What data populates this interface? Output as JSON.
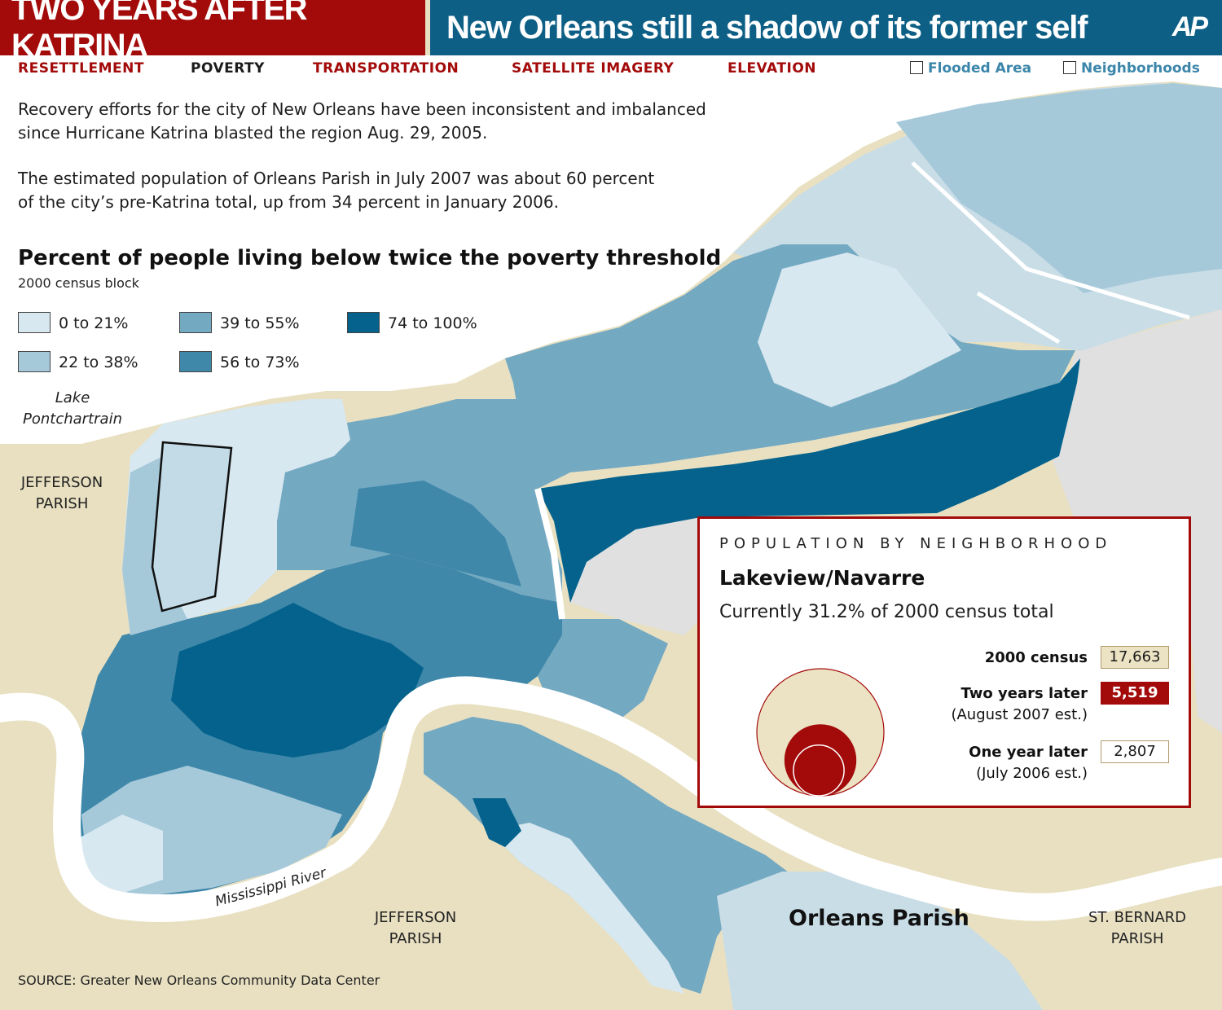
{
  "header": {
    "title_left": "TWO YEARS AFTER KATRINA",
    "title_right": "New Orleans still a shadow of its former self",
    "logo": "AP"
  },
  "nav": {
    "items": [
      {
        "label": "RESETTLEMENT",
        "active": false
      },
      {
        "label": "POVERTY",
        "active": true
      },
      {
        "label": "TRANSPORTATION",
        "active": false
      },
      {
        "label": "SATELLITE IMAGERY",
        "active": false
      },
      {
        "label": "ELEVATION",
        "active": false
      }
    ],
    "toggles": [
      {
        "label": "Flooded Area",
        "checked": false
      },
      {
        "label": "Neighborhoods",
        "checked": false
      }
    ]
  },
  "intro": {
    "p1_line1": "Recovery efforts for the city of New Orleans have been inconsistent and imbalanced",
    "p1_line2": "since Hurricane Katrina blasted the region Aug. 29, 2005.",
    "p2_line1": "The estimated population of Orleans Parish in July 2007 was about 60 percent",
    "p2_line2": "of the city’s pre-Katrina total, up from 34 percent in January 2006."
  },
  "legend": {
    "title": "Percent of people living below twice the poverty threshold",
    "subtitle": "2000 census block",
    "classes": [
      {
        "label": "0 to 21%",
        "color": "#d8e8f0"
      },
      {
        "label": "22 to 38%",
        "color": "#a6c9da"
      },
      {
        "label": "39 to 55%",
        "color": "#74a9c2"
      },
      {
        "label": "56 to 73%",
        "color": "#3f88aa"
      },
      {
        "label": "74 to 100%",
        "color": "#04628c"
      }
    ]
  },
  "map": {
    "labels": {
      "lake_line1": "Lake",
      "lake_line2": "Pontchartrain",
      "jefferson_west_line1": "JEFFERSON",
      "jefferson_west_line2": "PARISH",
      "jefferson_south_line1": "JEFFERSON",
      "jefferson_south_line2": "PARISH",
      "st_bernard_line1": "ST. BERNARD",
      "st_bernard_line2": "PARISH",
      "river": "Mississippi River",
      "orleans": "Orleans Parish"
    },
    "colors": {
      "land": "#e8e0c1",
      "water": "#ffffff",
      "unpopulated": "#e0e0e0",
      "selected_outline": "#111111"
    },
    "selected_neighborhood": "Lakeview/Navarre"
  },
  "infobox": {
    "heading": "POPULATION BY NEIGHBORHOOD",
    "neighborhood": "Lakeview/Navarre",
    "current": "Currently 31.2% of 2000 census total",
    "rows": [
      {
        "label": "2000 census",
        "sublabel": "",
        "value": "17,663",
        "population": 17663,
        "color": "#ece3c4"
      },
      {
        "label": "Two years later",
        "sublabel": "(August 2007 est.)",
        "value": "5,519",
        "population": 5519,
        "color": "#a30a0a"
      },
      {
        "label": "One year later",
        "sublabel": "(July 2006 est.)",
        "value": "2,807",
        "population": 2807,
        "color": "#ffffff"
      }
    ]
  },
  "source": "SOURCE: Greater New Orleans Community Data Center"
}
